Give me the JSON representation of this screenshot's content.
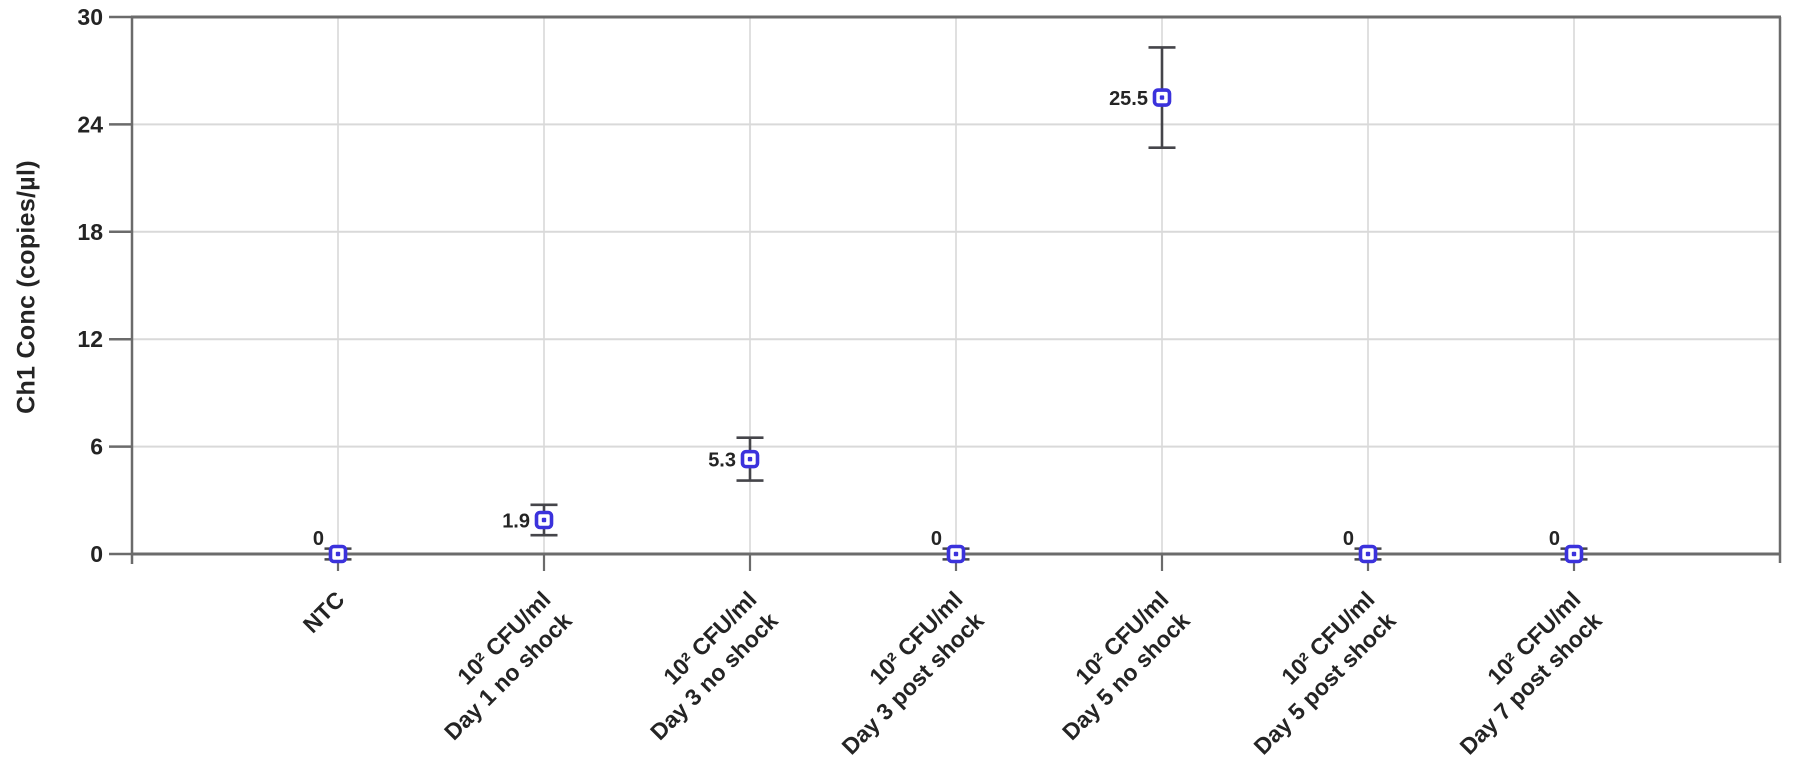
{
  "chart_data": {
    "type": "scatter",
    "title": "",
    "xlabel": "",
    "ylabel": "Ch1 Conc (copies/µl)",
    "ylim": [
      0,
      30
    ],
    "yticks": [
      0,
      6,
      12,
      18,
      24,
      30
    ],
    "grid": true,
    "legend": false,
    "marker_shape": "open-square",
    "categories": [
      [
        "NTC"
      ],
      [
        "10² CFU/ml",
        "Day 1 no shock"
      ],
      [
        "10² CFU/ml",
        "Day 3 no shock"
      ],
      [
        "10² CFU/ml",
        "Day 3 post shock"
      ],
      [
        "10² CFU/ml",
        "Day 5 no shock"
      ],
      [
        "10² CFU/ml",
        "Day 5 post shock"
      ],
      [
        "10² CFU/ml",
        "Day 7 post shock"
      ]
    ],
    "values": [
      0,
      1.9,
      5.3,
      0,
      25.5,
      0,
      0
    ],
    "value_labels": [
      "0",
      "1.9",
      "5.3",
      "0",
      "25.5",
      "0",
      "0"
    ],
    "errors": [
      0.3,
      0.85,
      1.2,
      0.3,
      2.8,
      0.3,
      0.3
    ]
  },
  "colors": {
    "marker": "#3b32dc",
    "error_bar": "#45454a",
    "grid": "#d9d9d9",
    "axis": "#6b6b6b",
    "text": "#242424",
    "background": "#ffffff"
  }
}
